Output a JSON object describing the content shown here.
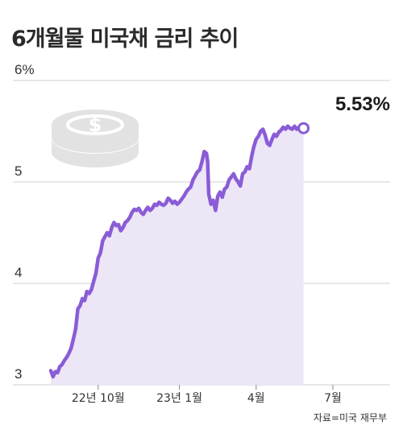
{
  "title": "6개월물 미국채 금리 추이",
  "source": "자료=미국 재무부",
  "colors": {
    "line": "#8a5cd6",
    "area": "#ece6f6",
    "grid": "#cfcfcf",
    "icon": "#e2e2e2"
  },
  "icon": "coin-stack-dollar-icon",
  "chart_data": {
    "type": "area",
    "title": "6개월물 미국채 금리 추이",
    "ylabel": "",
    "xlabel": "",
    "unit": "%",
    "ylim": [
      3,
      6
    ],
    "yticks": [
      {
        "value": 3,
        "label": "3"
      },
      {
        "value": 4,
        "label": "4"
      },
      {
        "value": 5,
        "label": "5"
      },
      {
        "value": 6,
        "label": "6%"
      }
    ],
    "xlim": [
      0,
      280
    ],
    "xticks": [
      {
        "value": 42,
        "label": "22년 10월"
      },
      {
        "value": 114,
        "label": "23년 1월"
      },
      {
        "value": 182,
        "label": "4월"
      },
      {
        "value": 250,
        "label": "7월"
      }
    ],
    "end_label": "5.53%",
    "series": [
      {
        "values": [
          [
            0,
            3.14
          ],
          [
            2,
            3.08
          ],
          [
            4,
            3.13
          ],
          [
            6,
            3.12
          ],
          [
            8,
            3.18
          ],
          [
            10,
            3.2
          ],
          [
            12,
            3.24
          ],
          [
            14,
            3.27
          ],
          [
            16,
            3.31
          ],
          [
            18,
            3.36
          ],
          [
            20,
            3.45
          ],
          [
            22,
            3.55
          ],
          [
            24,
            3.75
          ],
          [
            26,
            3.78
          ],
          [
            28,
            3.85
          ],
          [
            30,
            3.83
          ],
          [
            32,
            3.92
          ],
          [
            34,
            3.9
          ],
          [
            36,
            3.94
          ],
          [
            38,
            4.02
          ],
          [
            40,
            4.1
          ],
          [
            42,
            4.25
          ],
          [
            44,
            4.3
          ],
          [
            46,
            4.42
          ],
          [
            48,
            4.46
          ],
          [
            50,
            4.5
          ],
          [
            52,
            4.47
          ],
          [
            54,
            4.55
          ],
          [
            56,
            4.6
          ],
          [
            58,
            4.57
          ],
          [
            60,
            4.58
          ],
          [
            62,
            4.52
          ],
          [
            64,
            4.55
          ],
          [
            66,
            4.6
          ],
          [
            68,
            4.62
          ],
          [
            70,
            4.65
          ],
          [
            72,
            4.7
          ],
          [
            74,
            4.73
          ],
          [
            76,
            4.72
          ],
          [
            78,
            4.74
          ],
          [
            80,
            4.7
          ],
          [
            82,
            4.68
          ],
          [
            84,
            4.72
          ],
          [
            86,
            4.75
          ],
          [
            88,
            4.72
          ],
          [
            90,
            4.74
          ],
          [
            92,
            4.78
          ],
          [
            94,
            4.77
          ],
          [
            96,
            4.8
          ],
          [
            98,
            4.78
          ],
          [
            100,
            4.77
          ],
          [
            102,
            4.79
          ],
          [
            104,
            4.84
          ],
          [
            106,
            4.82
          ],
          [
            108,
            4.79
          ],
          [
            110,
            4.81
          ],
          [
            112,
            4.78
          ],
          [
            114,
            4.8
          ],
          [
            116,
            4.83
          ],
          [
            118,
            4.86
          ],
          [
            120,
            4.9
          ],
          [
            122,
            4.93
          ],
          [
            124,
            4.95
          ],
          [
            126,
            5.02
          ],
          [
            128,
            5.06
          ],
          [
            130,
            5.1
          ],
          [
            132,
            5.12
          ],
          [
            134,
            5.2
          ],
          [
            136,
            5.3
          ],
          [
            138,
            5.28
          ],
          [
            139,
            5.2
          ],
          [
            140,
            4.88
          ],
          [
            142,
            4.78
          ],
          [
            144,
            4.82
          ],
          [
            146,
            4.72
          ],
          [
            148,
            4.86
          ],
          [
            150,
            4.9
          ],
          [
            152,
            4.85
          ],
          [
            154,
            4.93
          ],
          [
            156,
            4.95
          ],
          [
            158,
            5.02
          ],
          [
            160,
            5.05
          ],
          [
            162,
            5.08
          ],
          [
            164,
            5.03
          ],
          [
            166,
            5.0
          ],
          [
            168,
            4.96
          ],
          [
            170,
            5.08
          ],
          [
            172,
            5.1
          ],
          [
            174,
            5.15
          ],
          [
            176,
            5.13
          ],
          [
            178,
            5.25
          ],
          [
            180,
            5.35
          ],
          [
            182,
            5.42
          ],
          [
            184,
            5.45
          ],
          [
            186,
            5.5
          ],
          [
            188,
            5.52
          ],
          [
            190,
            5.46
          ],
          [
            192,
            5.38
          ],
          [
            194,
            5.36
          ],
          [
            196,
            5.42
          ],
          [
            198,
            5.47
          ],
          [
            200,
            5.45
          ],
          [
            202,
            5.49
          ],
          [
            204,
            5.51
          ],
          [
            206,
            5.54
          ],
          [
            208,
            5.52
          ],
          [
            210,
            5.55
          ],
          [
            212,
            5.53
          ],
          [
            214,
            5.52
          ],
          [
            216,
            5.55
          ],
          [
            218,
            5.52
          ],
          [
            220,
            5.54
          ],
          [
            222,
            5.51
          ],
          [
            224,
            5.53
          ]
        ]
      }
    ]
  }
}
